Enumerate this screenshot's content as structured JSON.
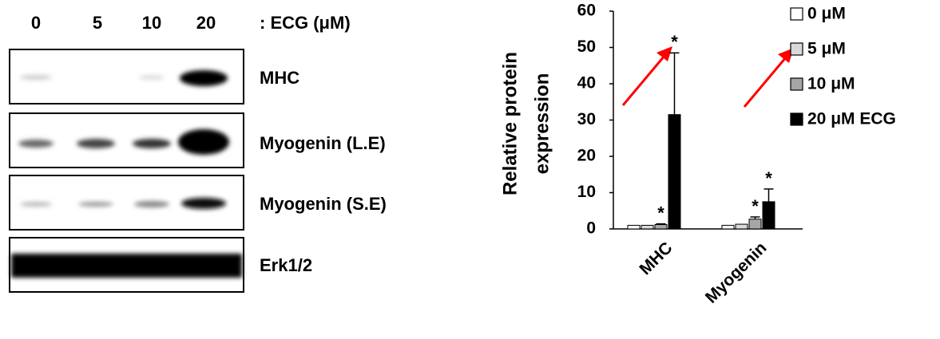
{
  "blot": {
    "lanes": [
      "0",
      "5",
      "10",
      "20"
    ],
    "treatment": ": ECG (μM)",
    "bands": [
      "MHC",
      "Myogenin (L.E)",
      "Myogenin (S.E)",
      "Erk1/2"
    ]
  },
  "chart_data": {
    "type": "bar",
    "ylabel": [
      "Relative protein",
      "expression"
    ],
    "categories": [
      "MHC",
      "Myogenin"
    ],
    "series": [
      {
        "name": "0 μM",
        "color": "#ffffff",
        "values": [
          1,
          1
        ],
        "significance": [
          null,
          null
        ]
      },
      {
        "name": "5 μM",
        "color": "#d9d9d9",
        "values": [
          1,
          1.3
        ],
        "significance": [
          null,
          null
        ]
      },
      {
        "name": "10 μM",
        "color": "#a6a6a6",
        "values": [
          1.2,
          2.7
        ],
        "errors": [
          0.2,
          0.6
        ],
        "significance": [
          "*",
          "*"
        ]
      },
      {
        "name": "20 μM ECG",
        "color": "#000000",
        "values": [
          31.5,
          7.5
        ],
        "errors": [
          17,
          3.5
        ],
        "significance": [
          "*",
          "*"
        ]
      }
    ],
    "ylim": [
      0,
      60
    ],
    "yticks": [
      0,
      10,
      20,
      30,
      40,
      50,
      60
    ],
    "grid": false
  }
}
